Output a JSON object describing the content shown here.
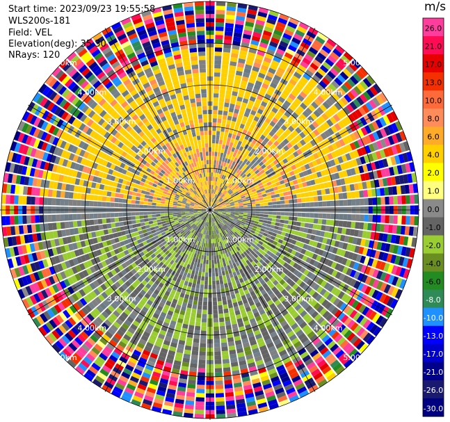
{
  "header": {
    "start_time": "Start time: 2023/09/23 19:55:58",
    "instrument": "WLS200s-181",
    "field": "Field: VEL",
    "elevation": "Elevation(deg): 35.30",
    "nrays": "NRays: 120"
  },
  "colorbar": {
    "unit": "m/s",
    "labels": [
      "26.0",
      "21.0",
      "17.0",
      "13.0",
      "10.0",
      "8.0",
      "6.0",
      "4.0",
      "2.0",
      "1.0",
      "0.0",
      "-1.0",
      "-2.0",
      "-4.0",
      "-6.0",
      "-8.0",
      "-10.0",
      "-13.0",
      "-17.0",
      "-21.0",
      "-26.0",
      "-30.0"
    ],
    "colors": [
      "#ff3d9c",
      "#ff0c55",
      "#e60000",
      "#f53000",
      "#ff6a3a",
      "#ff8c5a",
      "#ffab2a",
      "#ffd000",
      "#ffff00",
      "#ffff80",
      "#8a8a8a",
      "#646464",
      "#9acd32",
      "#6b8e23",
      "#228b22",
      "#2e8b57",
      "#1e90ff",
      "#0000ff",
      "#0000cd",
      "#00008b",
      "#191970",
      "#000080"
    ]
  },
  "chart_data": {
    "type": "heatmap",
    "projection": "polar PPI",
    "field": "VEL",
    "units": "m/s",
    "elevation_deg": 35.3,
    "n_rays": 120,
    "range_ring_labels": [
      "1.00km",
      "2.00km",
      "3.00km",
      "4.00km",
      "5.00km"
    ],
    "range_rings_km": [
      1,
      2,
      3,
      4,
      5
    ],
    "velocity_levels": [
      26.0,
      21.0,
      17.0,
      13.0,
      10.0,
      8.0,
      6.0,
      4.0,
      2.0,
      1.0,
      0.0,
      -1.0,
      -2.0,
      -4.0,
      -6.0,
      -8.0,
      -10.0,
      -13.0,
      -17.0,
      -21.0,
      -26.0,
      -30.0
    ],
    "pattern": {
      "north_sector_velocity_range": [
        2.0,
        8.0
      ],
      "south_sector_velocity_range": [
        -6.0,
        -1.0
      ],
      "noise_beyond_km": 4.0
    }
  }
}
